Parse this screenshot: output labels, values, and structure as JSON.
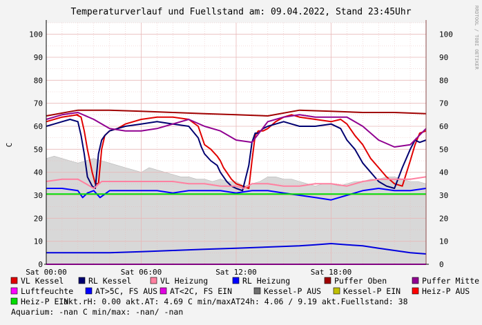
{
  "chart_data": {
    "type": "line",
    "title": "Temperaturverlauf und Fuellstand am: 09.04.2022, Stand 23:45Uhr",
    "ylabel": "C",
    "watermark": "RRDTOOL / TOBI OETIKER",
    "ylim": [
      0,
      105
    ],
    "yticks": [
      "0",
      "10",
      "20",
      "30",
      "40",
      "50",
      "60",
      "70",
      "80",
      "90",
      "100"
    ],
    "xlim": [
      0,
      24
    ],
    "xticks": [
      {
        "x": 0,
        "label": "Sat 00:00"
      },
      {
        "x": 6,
        "label": "Sat 06:00"
      },
      {
        "x": 12,
        "label": "Sat 12:00"
      },
      {
        "x": 18,
        "label": "Sat 18:00"
      }
    ],
    "grid": true,
    "colors": {
      "background": "#f3f3f3",
      "plot_bg": "#ffffff",
      "grid": "#e8b8b8",
      "axis": "#000000",
      "area": "#d8d8d8",
      "area_line": "#b8b8b8"
    },
    "area_series": {
      "name": "Luftfeuchte",
      "x": [
        0,
        0.5,
        1,
        1.5,
        2,
        2.5,
        3,
        3.5,
        4,
        4.5,
        5,
        5.5,
        6,
        6.5,
        7,
        7.5,
        8,
        8.5,
        9,
        9.5,
        10,
        10.5,
        11,
        11.5,
        12,
        12.5,
        13,
        13.5,
        14,
        14.5,
        15,
        15.5,
        16,
        16.5,
        17,
        17.5,
        18,
        18.5,
        19,
        19.5,
        20,
        20.5,
        21,
        21.5,
        22,
        22.5,
        23,
        23.5,
        24
      ],
      "values": [
        46,
        47,
        46,
        45,
        44,
        45,
        46,
        45,
        44,
        43,
        42,
        41,
        40,
        42,
        41,
        40,
        39,
        38,
        38,
        37,
        37,
        36,
        37,
        36,
        36,
        34,
        35,
        36,
        38,
        38,
        37,
        37,
        36,
        35,
        34,
        35,
        35,
        34,
        35,
        36,
        36,
        37,
        37,
        38,
        38,
        37,
        36,
        36,
        35
      ]
    },
    "series": [
      {
        "name": "VL Kessel",
        "color": "#e00000",
        "x": [
          0,
          1,
          2,
          1.9,
          2.2,
          2.4,
          2.6,
          2.9,
          3.1,
          3.3,
          3.5,
          3.7,
          4,
          4.5,
          5,
          6,
          7,
          8,
          9,
          9.6,
          9.8,
          10,
          10.4,
          10.8,
          11,
          11.2,
          11.4,
          11.7,
          12,
          12.4,
          12.8,
          13,
          13.2,
          13.4,
          13.7,
          14,
          14.5,
          15,
          15.5,
          16,
          17,
          18,
          18.6,
          19,
          19.5,
          20,
          20.5,
          21,
          21.5,
          22,
          22.5,
          23,
          23.3,
          23.6,
          24
        ],
        "values": [
          62,
          64,
          65,
          65,
          64,
          58,
          50,
          40,
          35,
          35,
          50,
          56,
          58,
          59,
          61,
          63,
          64,
          64,
          63,
          60,
          56,
          52,
          50,
          47,
          45,
          42,
          40,
          37,
          35,
          34,
          33,
          45,
          56,
          58,
          58,
          59,
          62,
          64,
          65,
          64,
          63,
          62,
          63,
          61,
          56,
          52,
          46,
          42,
          38,
          35,
          34,
          45,
          52,
          57,
          58
        ]
      },
      {
        "name": "RL Kessel",
        "color": "#000070",
        "x": [
          0,
          0.5,
          1,
          1.5,
          2,
          2.2,
          2.4,
          2.6,
          2.9,
          3.1,
          3.3,
          3.5,
          3.7,
          4,
          4.5,
          5,
          6,
          7,
          8,
          9,
          9.6,
          9.8,
          10,
          10.4,
          10.8,
          11,
          11.2,
          11.4,
          11.7,
          12,
          12.4,
          12.8,
          13,
          13.2,
          13.4,
          13.7,
          14,
          14.5,
          15,
          15.5,
          16,
          17,
          18,
          18.6,
          19,
          19.5,
          20,
          20.5,
          21,
          21.5,
          22,
          22.5,
          23,
          23.3,
          23.6,
          24
        ],
        "values": [
          60,
          61,
          62,
          63,
          62,
          56,
          48,
          38,
          34,
          33,
          48,
          54,
          56,
          58,
          59,
          60,
          61,
          62,
          61,
          60,
          55,
          51,
          48,
          45,
          43,
          40,
          38,
          36,
          34,
          33,
          32,
          43,
          53,
          57,
          57,
          59,
          60,
          61,
          62,
          61,
          60,
          60,
          61,
          59,
          54,
          50,
          44,
          40,
          36,
          34,
          33,
          42,
          50,
          54,
          53,
          54
        ]
      },
      {
        "name": "VL Heizung",
        "color": "#ff80a0",
        "x": [
          0,
          1,
          2,
          2.5,
          3,
          3.5,
          4,
          5,
          6,
          7,
          8,
          9,
          10,
          11,
          12,
          12.5,
          13,
          14,
          15,
          16,
          17,
          18,
          19,
          20,
          21,
          22,
          23,
          24
        ],
        "values": [
          36,
          37,
          37,
          35,
          33,
          36,
          36,
          36,
          36,
          36,
          36,
          35,
          35,
          34,
          34,
          33,
          35,
          35,
          34,
          34,
          35,
          35,
          34,
          36,
          37,
          37,
          37,
          38
        ]
      },
      {
        "name": "RL Heizung",
        "color": "#0000ff",
        "x": [
          0,
          1,
          2,
          2.3,
          2.6,
          3,
          3.4,
          4,
          5,
          6,
          7,
          8,
          9,
          10,
          11,
          12,
          13,
          14,
          15,
          16,
          17,
          18,
          19,
          20,
          21,
          22,
          23,
          24
        ],
        "values": [
          33,
          33,
          32,
          29,
          31,
          32,
          29,
          32,
          32,
          32,
          32,
          31,
          32,
          32,
          32,
          31,
          32,
          32,
          31,
          30,
          29,
          28,
          30,
          32,
          33,
          32,
          32,
          33
        ]
      },
      {
        "name": "Puffer Oben",
        "color": "#a00000",
        "x": [
          0,
          2,
          4,
          6,
          8,
          10,
          12,
          14,
          16,
          18,
          20,
          22,
          24
        ],
        "values": [
          64.5,
          67,
          67,
          66.5,
          66,
          65.5,
          65,
          64.5,
          67,
          66.5,
          66,
          66,
          65.5
        ]
      },
      {
        "name": "Puffer Mitte",
        "color": "#900090",
        "x": [
          0,
          1,
          2,
          3,
          4,
          5,
          6,
          7,
          8,
          9,
          10,
          11,
          12,
          13,
          14,
          15,
          16,
          17,
          18,
          19,
          20,
          21,
          22,
          23,
          24
        ],
        "values": [
          63,
          65,
          66,
          63,
          59,
          58,
          58,
          59,
          61,
          63,
          60,
          58,
          54,
          53,
          62,
          64,
          65,
          64,
          64,
          64,
          60,
          54,
          51,
          52,
          59
        ]
      },
      {
        "name": "Heiz-P EIN",
        "color": "#00dd00",
        "x": [
          0,
          2,
          4,
          6,
          8,
          10,
          12,
          14,
          16,
          18,
          20,
          22,
          24
        ],
        "values": [
          30.5,
          30.5,
          30.5,
          30.5,
          30.5,
          30.5,
          30.5,
          30.5,
          30.5,
          30.5,
          30.5,
          30.5,
          30.5
        ]
      },
      {
        "name": "AT>5C, FS AUS",
        "color": "#0000dd",
        "x": [
          0,
          2,
          4,
          6,
          8,
          10,
          12,
          14,
          16,
          17,
          18,
          19,
          20,
          21,
          22,
          23,
          24
        ],
        "values": [
          5,
          5,
          5,
          5.5,
          6,
          6.5,
          7,
          7.5,
          8,
          8.5,
          9,
          8.5,
          8,
          7,
          6,
          5,
          4.5
        ]
      },
      {
        "name": "AT<2C, FS EIN",
        "color": "#ff00ff",
        "x": [
          0,
          24
        ],
        "values": [
          0,
          0
        ]
      }
    ]
  },
  "legend": [
    {
      "color": "#e00000",
      "label": "VL Kessel"
    },
    {
      "color": "#000070",
      "label": "RL Kessel"
    },
    {
      "color": "#ff80a0",
      "label": "VL Heizung"
    },
    {
      "color": "#0000ff",
      "label": "RL Heizung"
    },
    {
      "color": "#a00000",
      "label": "Puffer Oben"
    },
    {
      "color": "#900090",
      "label": "Puffer Mitte"
    },
    {
      "color": "#ff00ff",
      "label": "Luftfeuchte"
    },
    {
      "color": "#0000ff",
      "label": "AT>5C, FS AUS"
    },
    {
      "color": "#e000e0",
      "label": "AT<2C, FS EIN"
    },
    {
      "color": "#707070",
      "label": "Kessel-P AUS"
    },
    {
      "color": "#c0c000",
      "label": "Kessel-P EIN"
    },
    {
      "color": "#ff0000",
      "label": "Heiz-P AUS"
    },
    {
      "color": "#00dd00",
      "label": "Heiz-P EIN"
    }
  ],
  "status": {
    "line3_rest": "akt.rH: 0.00   akt.AT: 4.69 C   min/maxAT24h: 4.06 / 9.19   akt.Fuellstand:   38",
    "line4": "Aquarium: -nan C  min/max: -nan/ -nan"
  }
}
